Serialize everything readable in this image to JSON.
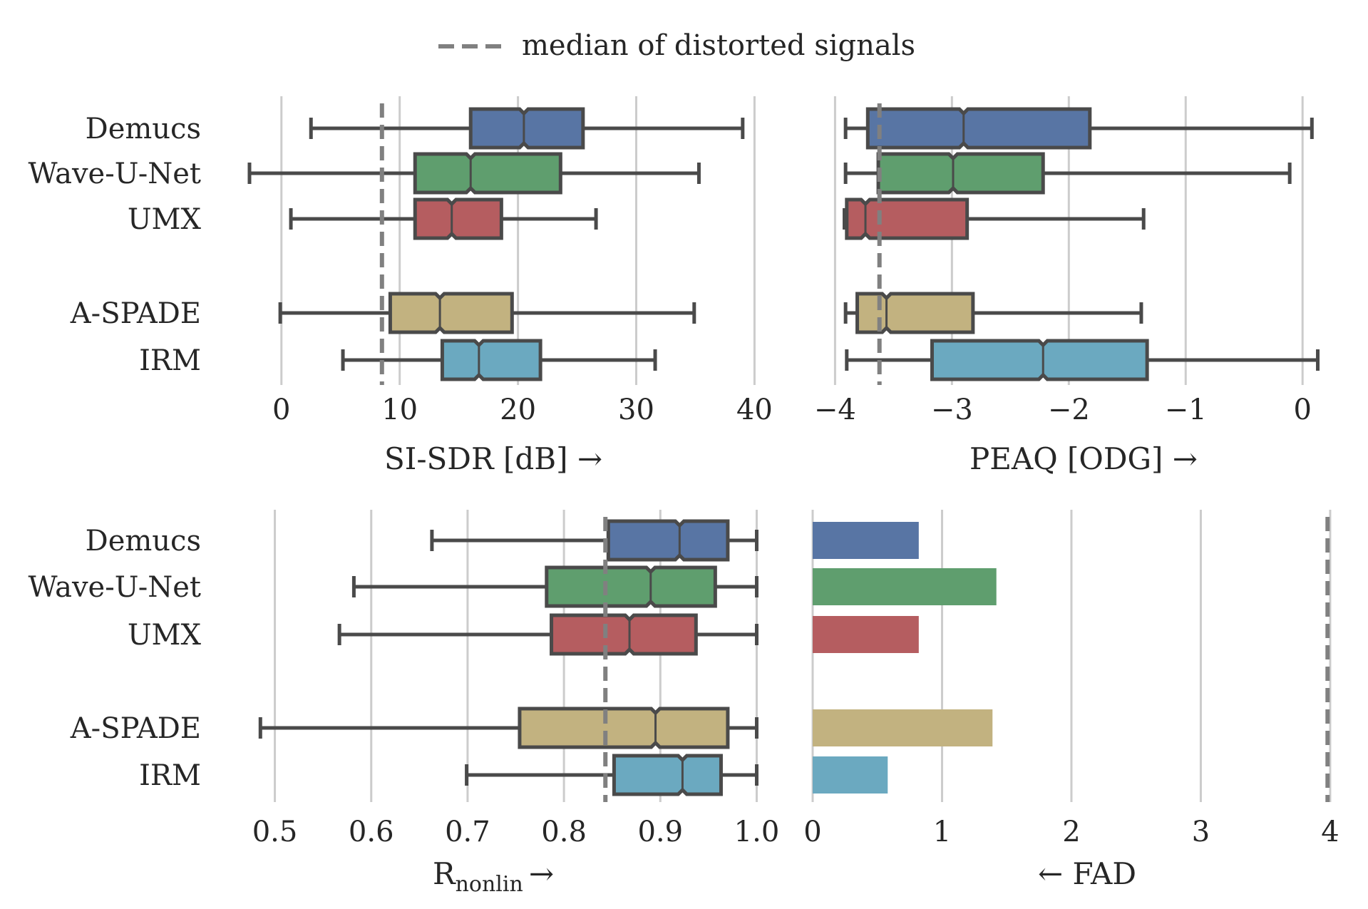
{
  "legend": {
    "label": "median of distorted signals",
    "line_color": "#808080"
  },
  "colors": {
    "Demucs": "#5875a4",
    "Wave-U-Net": "#5f9e6e",
    "UMX": "#b55d60",
    "A-SPADE": "#c2b280",
    "IRM": "#6ba9c0"
  },
  "chart_data": [
    {
      "type": "box",
      "xlabel": "SI-SDR [dB] →",
      "xlim": [
        -3,
        41
      ],
      "ticks": [
        0,
        10,
        20,
        30,
        40
      ],
      "tick_labels": [
        "0",
        "10",
        "20",
        "30",
        "40"
      ],
      "grid": true,
      "reference_line": 8.5,
      "categories": [
        "Demucs",
        "Wave-U-Net",
        "UMX",
        "A-SPADE",
        "IRM"
      ],
      "boxes": [
        {
          "name": "Demucs",
          "whislo": 2.5,
          "q1": 16.0,
          "med": 20.5,
          "q3": 25.5,
          "whishi": 39.0
        },
        {
          "name": "Wave-U-Net",
          "whislo": -2.7,
          "q1": 11.3,
          "med": 16.0,
          "q3": 23.6,
          "whishi": 35.3
        },
        {
          "name": "UMX",
          "whislo": 0.8,
          "q1": 11.3,
          "med": 14.4,
          "q3": 18.6,
          "whishi": 26.6
        },
        {
          "name": "A-SPADE",
          "whislo": -0.1,
          "q1": 9.2,
          "med": 13.4,
          "q3": 19.5,
          "whishi": 34.9
        },
        {
          "name": "IRM",
          "whislo": 5.2,
          "q1": 13.6,
          "med": 16.7,
          "q3": 21.9,
          "whishi": 31.6
        }
      ]
    },
    {
      "type": "box",
      "xlabel": "PEAQ [ODG] →",
      "xlim": [
        -4.1,
        0.2
      ],
      "ticks": [
        -4,
        -3,
        -2,
        -1,
        0
      ],
      "tick_labels": [
        "−4",
        "−3",
        "−2",
        "−1",
        "0"
      ],
      "grid": true,
      "reference_line": -3.62,
      "categories": [
        "Demucs",
        "Wave-U-Net",
        "UMX",
        "A-SPADE",
        "IRM"
      ],
      "boxes": [
        {
          "name": "Demucs",
          "whislo": -3.91,
          "q1": -3.72,
          "med": -2.9,
          "q3": -1.82,
          "whishi": 0.08
        },
        {
          "name": "Wave-U-Net",
          "whislo": -3.91,
          "q1": -3.63,
          "med": -2.99,
          "q3": -2.22,
          "whishi": -0.11
        },
        {
          "name": "UMX",
          "whislo": -3.92,
          "q1": -3.9,
          "med": -3.74,
          "q3": -2.87,
          "whishi": -1.36
        },
        {
          "name": "A-SPADE",
          "whislo": -3.91,
          "q1": -3.81,
          "med": -3.56,
          "q3": -2.82,
          "whishi": -1.38
        },
        {
          "name": "IRM",
          "whislo": -3.9,
          "q1": -3.17,
          "med": -2.22,
          "q3": -1.33,
          "whishi": 0.13
        }
      ]
    },
    {
      "type": "box",
      "xlabel_main": "R",
      "xlabel_sub": "nonlin",
      "xlabel_arrow": "→",
      "xlim": [
        0.47,
        1.01
      ],
      "ticks": [
        0.5,
        0.6,
        0.7,
        0.8,
        0.9,
        1.0
      ],
      "tick_labels": [
        "0.5",
        "0.6",
        "0.7",
        "0.8",
        "0.9",
        "1.0"
      ],
      "grid": true,
      "reference_line": 0.843,
      "categories": [
        "Demucs",
        "Wave-U-Net",
        "UMX",
        "A-SPADE",
        "IRM"
      ],
      "boxes": [
        {
          "name": "Demucs",
          "whislo": 0.663,
          "q1": 0.846,
          "med": 0.92,
          "q3": 0.97,
          "whishi": 1.0
        },
        {
          "name": "Wave-U-Net",
          "whislo": 0.582,
          "q1": 0.782,
          "med": 0.89,
          "q3": 0.957,
          "whishi": 1.0
        },
        {
          "name": "UMX",
          "whislo": 0.567,
          "q1": 0.787,
          "med": 0.868,
          "q3": 0.937,
          "whishi": 1.0
        },
        {
          "name": "A-SPADE",
          "whislo": 0.485,
          "q1": 0.754,
          "med": 0.895,
          "q3": 0.97,
          "whishi": 1.0
        },
        {
          "name": "IRM",
          "whislo": 0.699,
          "q1": 0.852,
          "med": 0.923,
          "q3": 0.963,
          "whishi": 1.0
        }
      ]
    },
    {
      "type": "bar",
      "orientation": "horizontal",
      "xlabel": "← FAD",
      "xlim": [
        0,
        4.05
      ],
      "ticks": [
        0,
        1,
        2,
        3,
        4
      ],
      "tick_labels": [
        "0",
        "1",
        "2",
        "3",
        "4"
      ],
      "grid": true,
      "reference_line": 3.98,
      "categories": [
        "Demucs",
        "Wave-U-Net",
        "UMX",
        "A-SPADE",
        "IRM"
      ],
      "values": [
        0.82,
        1.42,
        0.82,
        1.39,
        0.58
      ]
    }
  ]
}
